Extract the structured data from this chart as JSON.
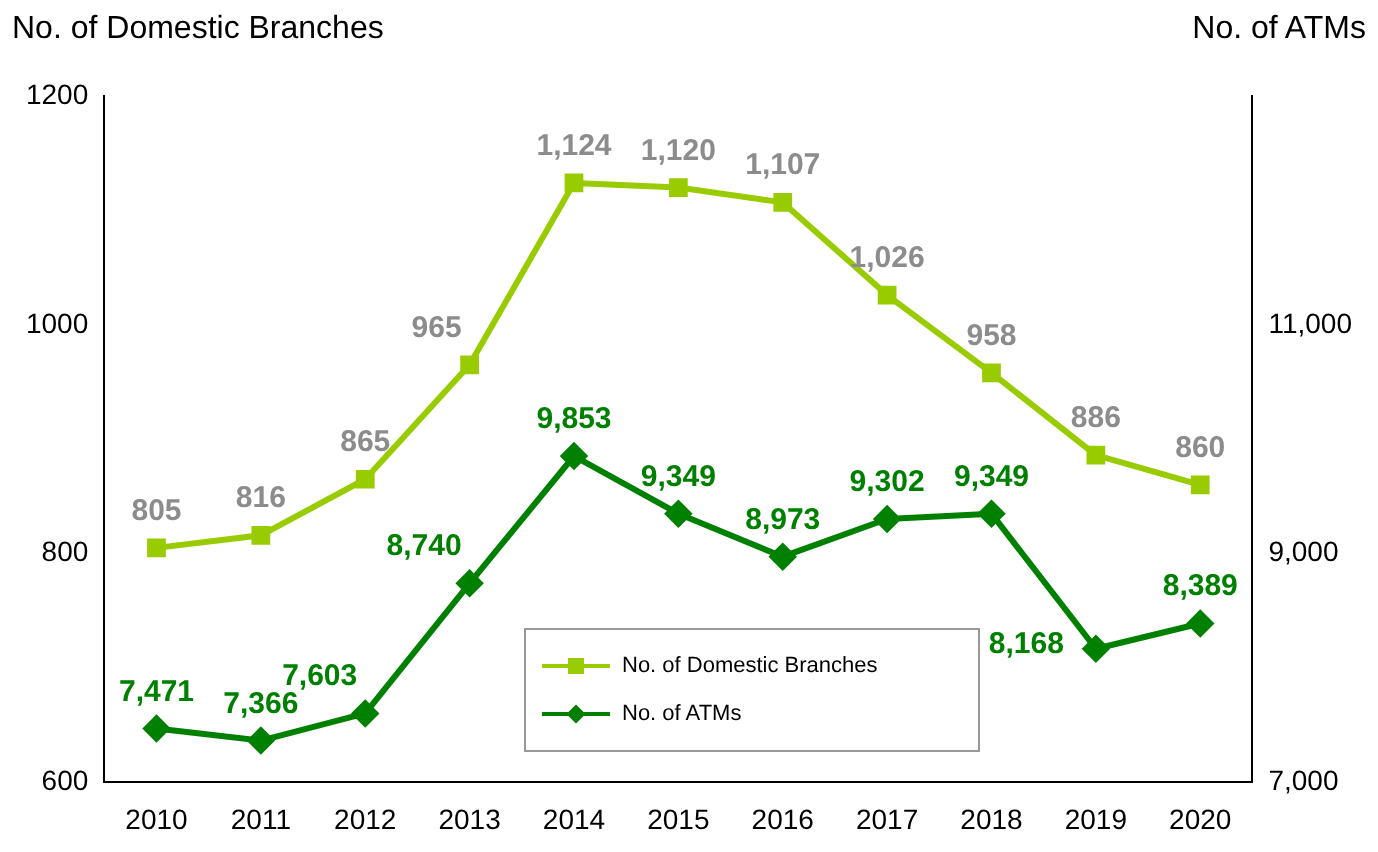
{
  "chart_data": {
    "type": "line",
    "ylabel": "No. of Domestic Branches",
    "y2label": "No. of ATMs",
    "categories": [
      "2010",
      "2011",
      "2012",
      "2013",
      "2014",
      "2015",
      "2016",
      "2017",
      "2018",
      "2019",
      "2020"
    ],
    "series": [
      {
        "name": "No. of Domestic Branches",
        "color": "#99cc00",
        "marker": "square",
        "values": [
          805,
          816,
          865,
          965,
          1124,
          1120,
          1107,
          1026,
          958,
          886,
          860
        ],
        "value_labels": [
          "805",
          "816",
          "865",
          "965",
          "1,124",
          "1,120",
          "1,107",
          "1,026",
          "958",
          "886",
          "860"
        ]
      },
      {
        "name": "No. of ATMs",
        "color": "#008000",
        "marker": "diamond",
        "axis": "y2",
        "values": [
          7471,
          7366,
          7603,
          8740,
          9853,
          9349,
          8973,
          9302,
          9349,
          8168,
          8389
        ],
        "value_labels": [
          "7,471",
          "7,366",
          "7,603",
          "8,740",
          "9,853",
          "9,349",
          "8,973",
          "9,302",
          "9,349",
          "8,168",
          "8,389"
        ]
      }
    ],
    "ylim": [
      600,
      1200
    ],
    "yticks": [
      600,
      800,
      1000,
      1200
    ],
    "y2lim": [
      7000,
      13000
    ],
    "y2ticks": [
      {
        "value": 7000,
        "label": "7,000"
      },
      {
        "value": 9000,
        "label": "9,000"
      },
      {
        "value": 11000,
        "label": "11,000"
      }
    ],
    "grid": false,
    "legend": "bottom"
  }
}
